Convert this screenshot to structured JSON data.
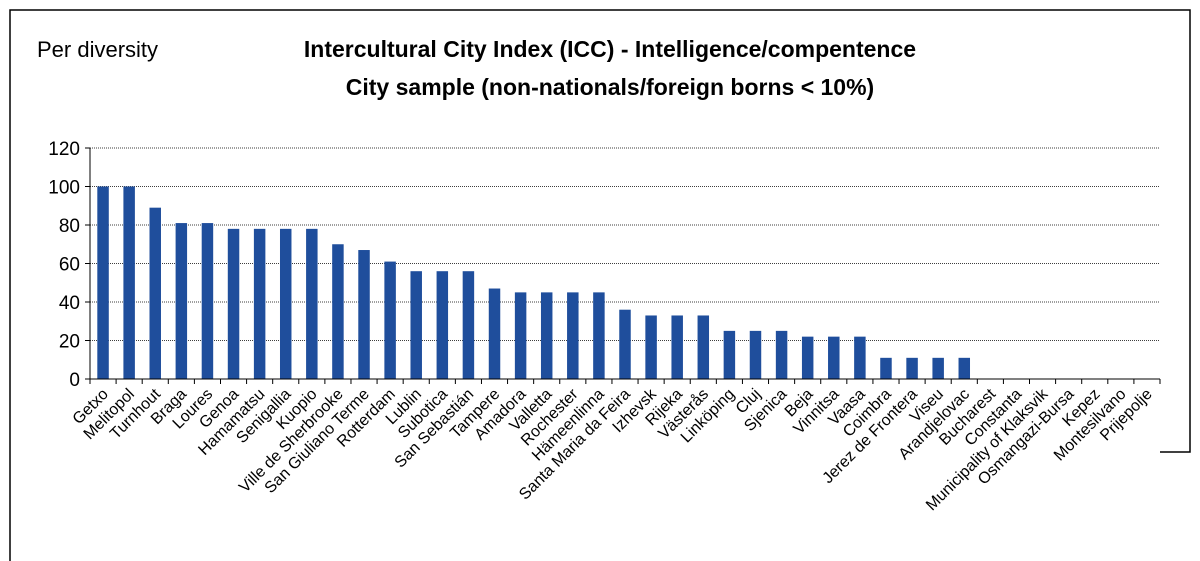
{
  "chart_data": {
    "type": "bar",
    "subtitle": "Per diversity",
    "title": [
      "Intercultural City Index (ICC) - Intelligence/compentence",
      "City sample (non-nationals/foreign borns < 10%)"
    ],
    "categories": [
      "Getxo",
      "Melitopol",
      "Turnhout",
      "Braga",
      "Loures",
      "Genoa",
      "Hamamatsu",
      "Senigallia",
      "Kuopio",
      "Ville de Sherbrooke",
      "San Giuliano Terme",
      "Rotterdam",
      "Lublin",
      "Subotica",
      "San Sebastián",
      "Tampere",
      "Amadora",
      "Valletta",
      "Rochester",
      "Hämeenlinna",
      "Santa Maria da Feira",
      "Izhevsk",
      "Rijeka",
      "Västerås",
      "Linköping",
      "Cluj",
      "Sjenica",
      "Beja",
      "Vinnitsa",
      "Vaasa",
      "Coimbra",
      "Jerez de Frontera",
      "Viseu",
      "Arandjelovac",
      "Bucharest",
      "Constanta",
      "Municipality of Klaksvik",
      "Osmangazi-Bursa",
      "Kepez",
      "Montesilvano",
      "Prijepolje"
    ],
    "values": [
      100,
      100,
      89,
      81,
      81,
      78,
      78,
      78,
      78,
      70,
      67,
      61,
      56,
      56,
      56,
      47,
      45,
      45,
      45,
      45,
      36,
      33,
      33,
      33,
      25,
      25,
      25,
      22,
      22,
      22,
      11,
      11,
      11,
      11,
      0,
      0,
      0,
      0,
      0,
      0,
      0
    ],
    "color": "#1f4e9c",
    "ylim": [
      0,
      120
    ],
    "yticks": [
      0,
      20,
      40,
      60,
      80,
      100,
      120
    ],
    "grid": true
  }
}
